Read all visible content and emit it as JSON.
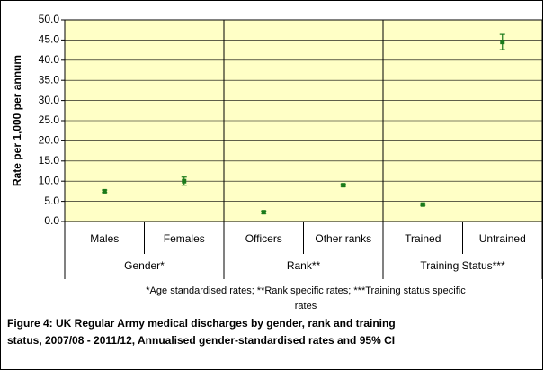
{
  "chart_data": {
    "type": "errorbar",
    "ylabel": "Rate per 1,000 per annum",
    "groups": [
      {
        "name": "Gender*",
        "categories": [
          "Males",
          "Females"
        ]
      },
      {
        "name": "Rank**",
        "categories": [
          "Officers",
          "Other ranks"
        ]
      },
      {
        "name": "Training Status***",
        "categories": [
          "Trained",
          "Untrained"
        ]
      }
    ],
    "values": [
      7.5,
      10.0,
      2.3,
      9.0,
      4.2,
      44.5
    ],
    "errors": [
      0.3,
      1.0,
      0.3,
      0.3,
      0.2,
      1.9
    ],
    "color": "#1a7a1a",
    "background": "#ffffc6",
    "ylim": [
      0,
      50
    ],
    "yticks": [
      {
        "value": 0,
        "label": "0.0"
      },
      {
        "value": 5,
        "label": "5.0"
      },
      {
        "value": 10,
        "label": "10.0"
      },
      {
        "value": 15,
        "label": "15.0"
      },
      {
        "value": 20,
        "label": "20.0"
      },
      {
        "value": 25,
        "label": "25.0"
      },
      {
        "value": 30,
        "label": "30.0"
      },
      {
        "value": 35,
        "label": "35.0"
      },
      {
        "value": 40,
        "label": "40.0"
      },
      {
        "value": 45,
        "label": "45.0"
      },
      {
        "value": 50,
        "label": "50.0"
      }
    ],
    "grid": true,
    "footnote": "*Age standardised rates; **Rank specific rates; ***Training status specific rates",
    "caption": "Figure 4: UK Regular Army medical discharges by gender, rank and training status, 2007/08 - 2011/12, Annualised gender-standardised rates and 95% CI"
  }
}
